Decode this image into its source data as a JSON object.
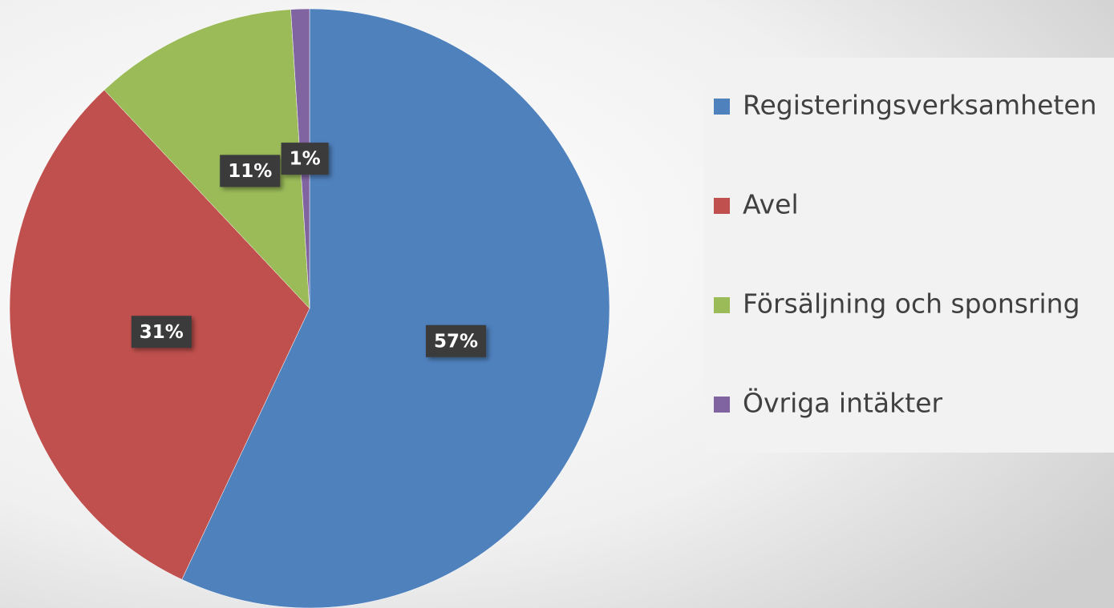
{
  "chart_data": {
    "type": "pie",
    "categories": [
      "Registeringsverksamheten",
      "Avel",
      "Försäljning och sponsring",
      "Övriga intäkter"
    ],
    "values": [
      57,
      31,
      11,
      1
    ],
    "value_labels": [
      "57%",
      "31%",
      "11%",
      "1%"
    ],
    "colors": [
      "#4f81bd",
      "#c0504d",
      "#9bbb59",
      "#8064a2"
    ],
    "legend": "right"
  }
}
